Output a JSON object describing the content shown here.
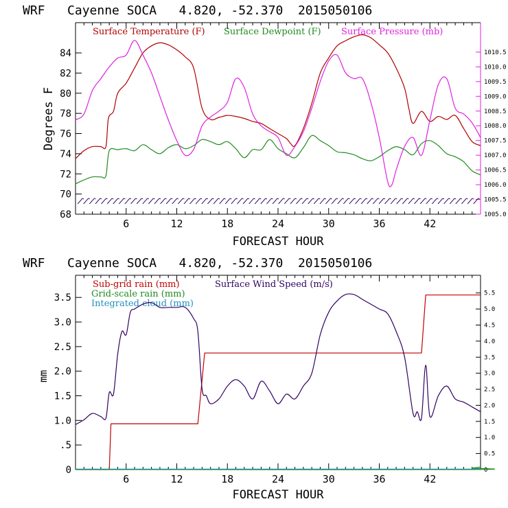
{
  "colors": {
    "temp": "#b00000",
    "dew": "#1f8a1f",
    "pres": "#e020e0",
    "rain": "#c00000",
    "grid_rain": "#1f8a1f",
    "cloud": "#1e90c0",
    "wind": "#300060",
    "barb": "#300060",
    "frame": "#000000"
  },
  "chart_data": [
    {
      "type": "line",
      "title": "WRF   Cayenne SOCA   4.820, -52.370  2015050106",
      "xlabel": "FORECAST HOUR",
      "ylabel": "Degrees F",
      "xlim": [
        0,
        48
      ],
      "ylim": [
        68,
        87
      ],
      "ylim_right": [
        1005.0,
        1011.5
      ],
      "x_ticks": [
        6,
        12,
        18,
        24,
        30,
        36,
        42
      ],
      "y_ticks": [
        68,
        70,
        72,
        74,
        76,
        78,
        80,
        82,
        84
      ],
      "y_ticks_right": [
        "1005.0",
        "1005.5",
        "1006.0",
        "1006.5",
        "1007.0",
        "1007.5",
        "1008.0",
        "1008.5",
        "1009.0",
        "1009.5",
        "1010.0",
        "1010.5"
      ],
      "legend": [
        "Surface Temperature (F)",
        "Surface Dewpoint (F)",
        "Surface Pressure (mb)"
      ],
      "series": [
        {
          "name": "Surface Temperature (F)",
          "axis": "left",
          "points": [
            [
              0,
              73.5
            ],
            [
              1,
              74.3
            ],
            [
              2,
              74.7
            ],
            [
              3,
              74.7
            ],
            [
              3.6,
              74.7
            ],
            [
              3.9,
              77.5
            ],
            [
              4.5,
              78.2
            ],
            [
              5,
              80.0
            ],
            [
              6,
              81.0
            ],
            [
              7,
              82.5
            ],
            [
              8,
              84.0
            ],
            [
              9,
              84.7
            ],
            [
              10,
              85.0
            ],
            [
              11,
              84.8
            ],
            [
              12,
              84.3
            ],
            [
              13,
              83.6
            ],
            [
              14,
              82.5
            ],
            [
              15,
              78.5
            ],
            [
              16,
              77.4
            ],
            [
              17,
              77.6
            ],
            [
              18,
              77.8
            ],
            [
              19,
              77.7
            ],
            [
              20,
              77.5
            ],
            [
              21,
              77.2
            ],
            [
              22,
              77.0
            ],
            [
              23,
              76.5
            ],
            [
              24,
              76.0
            ],
            [
              25,
              75.5
            ],
            [
              25.5,
              75.0
            ],
            [
              26,
              74.8
            ],
            [
              27,
              76.5
            ],
            [
              28,
              79.0
            ],
            [
              29,
              82.0
            ],
            [
              30,
              83.5
            ],
            [
              31,
              84.7
            ],
            [
              32,
              85.2
            ],
            [
              33,
              85.6
            ],
            [
              34,
              85.8
            ],
            [
              35,
              85.5
            ],
            [
              36,
              84.8
            ],
            [
              37,
              84.0
            ],
            [
              38,
              82.5
            ],
            [
              39,
              80.5
            ],
            [
              39.5,
              78.5
            ],
            [
              40,
              77.0
            ],
            [
              41,
              78.2
            ],
            [
              42,
              77.2
            ],
            [
              43,
              77.7
            ],
            [
              44,
              77.4
            ],
            [
              45,
              77.8
            ],
            [
              46,
              76.5
            ],
            [
              47,
              75.2
            ],
            [
              48,
              74.8
            ]
          ]
        },
        {
          "name": "Surface Dewpoint (F)",
          "axis": "left",
          "points": [
            [
              0,
              71.0
            ],
            [
              1,
              71.4
            ],
            [
              2,
              71.7
            ],
            [
              3,
              71.7
            ],
            [
              3.6,
              71.8
            ],
            [
              4,
              74.3
            ],
            [
              5,
              74.4
            ],
            [
              6,
              74.5
            ],
            [
              7,
              74.3
            ],
            [
              8,
              74.9
            ],
            [
              9,
              74.4
            ],
            [
              10,
              74.0
            ],
            [
              11,
              74.6
            ],
            [
              12,
              74.9
            ],
            [
              13,
              74.5
            ],
            [
              14,
              74.8
            ],
            [
              15,
              75.4
            ],
            [
              16,
              75.2
            ],
            [
              17,
              74.9
            ],
            [
              18,
              75.2
            ],
            [
              19,
              74.5
            ],
            [
              20,
              73.6
            ],
            [
              21,
              74.4
            ],
            [
              22,
              74.4
            ],
            [
              23,
              75.4
            ],
            [
              24,
              74.5
            ],
            [
              25,
              74.0
            ],
            [
              26,
              73.6
            ],
            [
              27,
              74.6
            ],
            [
              28,
              75.8
            ],
            [
              29,
              75.3
            ],
            [
              30,
              74.8
            ],
            [
              31,
              74.2
            ],
            [
              32,
              74.1
            ],
            [
              33,
              73.9
            ],
            [
              34,
              73.5
            ],
            [
              35,
              73.3
            ],
            [
              36,
              73.7
            ],
            [
              37,
              74.3
            ],
            [
              38,
              74.7
            ],
            [
              39,
              74.4
            ],
            [
              40,
              73.9
            ],
            [
              41,
              75.0
            ],
            [
              42,
              75.3
            ],
            [
              43,
              74.8
            ],
            [
              44,
              74.0
            ],
            [
              45,
              73.7
            ],
            [
              46,
              73.2
            ],
            [
              47,
              72.3
            ],
            [
              48,
              71.9
            ]
          ]
        },
        {
          "name": "Surface Pressure (mb)",
          "axis": "right",
          "points": [
            [
              0,
              1008.2
            ],
            [
              1,
              1008.4
            ],
            [
              2,
              1009.2
            ],
            [
              3,
              1009.6
            ],
            [
              4,
              1010.0
            ],
            [
              5,
              1010.3
            ],
            [
              6,
              1010.4
            ],
            [
              7,
              1010.9
            ],
            [
              8,
              1010.4
            ],
            [
              9,
              1009.8
            ],
            [
              10,
              1009.0
            ],
            [
              11,
              1008.2
            ],
            [
              12,
              1007.5
            ],
            [
              13,
              1007.0
            ],
            [
              14,
              1007.2
            ],
            [
              15,
              1008.0
            ],
            [
              16,
              1008.3
            ],
            [
              17,
              1008.5
            ],
            [
              18,
              1008.8
            ],
            [
              19,
              1009.6
            ],
            [
              20,
              1009.3
            ],
            [
              21,
              1008.4
            ],
            [
              22,
              1008.0
            ],
            [
              23,
              1007.8
            ],
            [
              24,
              1007.6
            ],
            [
              25,
              1007.0
            ],
            [
              26,
              1007.3
            ],
            [
              27,
              1007.8
            ],
            [
              28,
              1008.6
            ],
            [
              29,
              1009.5
            ],
            [
              30,
              1010.2
            ],
            [
              31,
              1010.4
            ],
            [
              32,
              1009.8
            ],
            [
              33,
              1009.6
            ],
            [
              34,
              1009.6
            ],
            [
              35,
              1008.8
            ],
            [
              36,
              1007.6
            ],
            [
              37,
              1006.1
            ],
            [
              37.5,
              1006.0
            ],
            [
              38,
              1006.5
            ],
            [
              39,
              1007.3
            ],
            [
              40,
              1007.6
            ],
            [
              41,
              1007.0
            ],
            [
              42,
              1008.2
            ],
            [
              43,
              1009.4
            ],
            [
              44,
              1009.6
            ],
            [
              45,
              1008.6
            ],
            [
              46,
              1008.4
            ],
            [
              47,
              1008.1
            ],
            [
              48,
              1007.6
            ]
          ]
        }
      ],
      "wind_barbs": {
        "y_value": 69.3,
        "x_start": 0.5,
        "x_end": 47.5,
        "step": 0.7
      }
    },
    {
      "type": "line",
      "title": "WRF   Cayenne SOCA   4.820, -52.370  2015050106",
      "xlabel": "FORECAST HOUR",
      "ylabel": "mm",
      "xlim": [
        0,
        48
      ],
      "ylim": [
        0,
        3.95
      ],
      "ylim_right": [
        0,
        6.05
      ],
      "x_ticks": [
        6,
        12,
        18,
        24,
        30,
        36,
        42
      ],
      "y_ticks": [
        0,
        0.5,
        1.0,
        1.5,
        2.0,
        2.5,
        3.0,
        3.5
      ],
      "y_tick_labels": [
        "0",
        ".5",
        "1.0",
        "1.5",
        "2.0",
        "2.5",
        "3.0",
        "3.5"
      ],
      "y_ticks_right": [
        "0",
        "0.5",
        "1.0",
        "1.5",
        "2.0",
        "2.5",
        "3.0",
        "3.5",
        "4.0",
        "4.5",
        "5.0",
        "5.5"
      ],
      "legend": [
        "Sub-grid rain (mm)",
        "Grid-scale rain (mm)",
        "Integrated cloud (mm)",
        "Surface Wind Speed (m/s)"
      ],
      "series": [
        {
          "name": "Sub-grid rain (mm)",
          "axis": "left",
          "step": true,
          "points": [
            [
              0,
              0
            ],
            [
              4,
              0
            ],
            [
              4.2,
              0.93
            ],
            [
              14.5,
              0.93
            ],
            [
              15.3,
              2.37
            ],
            [
              41,
              2.37
            ],
            [
              41.5,
              3.55
            ],
            [
              48,
              3.55
            ]
          ]
        },
        {
          "name": "Grid-scale rain (mm)",
          "axis": "left",
          "points": [
            [
              0,
              0
            ],
            [
              46,
              0
            ],
            [
              47,
              0.03
            ],
            [
              48,
              0.05
            ]
          ]
        },
        {
          "name": "Integrated cloud (mm)",
          "axis": "left",
          "points": [
            [
              0,
              0.01
            ],
            [
              48,
              0.01
            ]
          ]
        },
        {
          "name": "Surface Wind Speed (m/s)",
          "axis": "right",
          "points": [
            [
              0,
              1.4
            ],
            [
              1,
              1.55
            ],
            [
              2,
              1.75
            ],
            [
              3,
              1.65
            ],
            [
              3.6,
              1.6
            ],
            [
              4,
              2.4
            ],
            [
              4.5,
              2.35
            ],
            [
              5,
              3.6
            ],
            [
              5.5,
              4.3
            ],
            [
              6,
              4.2
            ],
            [
              6.5,
              4.9
            ],
            [
              7,
              5.0
            ],
            [
              8,
              5.15
            ],
            [
              9,
              5.2
            ],
            [
              10,
              5.05
            ],
            [
              11,
              5.05
            ],
            [
              12,
              5.05
            ],
            [
              13,
              5.05
            ],
            [
              14,
              4.7
            ],
            [
              14.5,
              4.3
            ],
            [
              15,
              2.5
            ],
            [
              15.5,
              2.3
            ],
            [
              16,
              2.05
            ],
            [
              17,
              2.2
            ],
            [
              18,
              2.6
            ],
            [
              19,
              2.8
            ],
            [
              20,
              2.6
            ],
            [
              21,
              2.2
            ],
            [
              22,
              2.75
            ],
            [
              23,
              2.45
            ],
            [
              24,
              2.05
            ],
            [
              25,
              2.35
            ],
            [
              26,
              2.2
            ],
            [
              27,
              2.6
            ],
            [
              28,
              3.0
            ],
            [
              29,
              4.2
            ],
            [
              30,
              4.9
            ],
            [
              31,
              5.25
            ],
            [
              32,
              5.45
            ],
            [
              33,
              5.45
            ],
            [
              34,
              5.3
            ],
            [
              35,
              5.15
            ],
            [
              36,
              5.0
            ],
            [
              37,
              4.85
            ],
            [
              38,
              4.3
            ],
            [
              39,
              3.5
            ],
            [
              40,
              1.75
            ],
            [
              40.5,
              1.8
            ],
            [
              41,
              1.6
            ],
            [
              41.5,
              3.25
            ],
            [
              42,
              1.65
            ],
            [
              43,
              2.3
            ],
            [
              44,
              2.6
            ],
            [
              45,
              2.2
            ],
            [
              46,
              2.1
            ],
            [
              47,
              1.95
            ],
            [
              48,
              1.8
            ]
          ]
        }
      ]
    }
  ]
}
